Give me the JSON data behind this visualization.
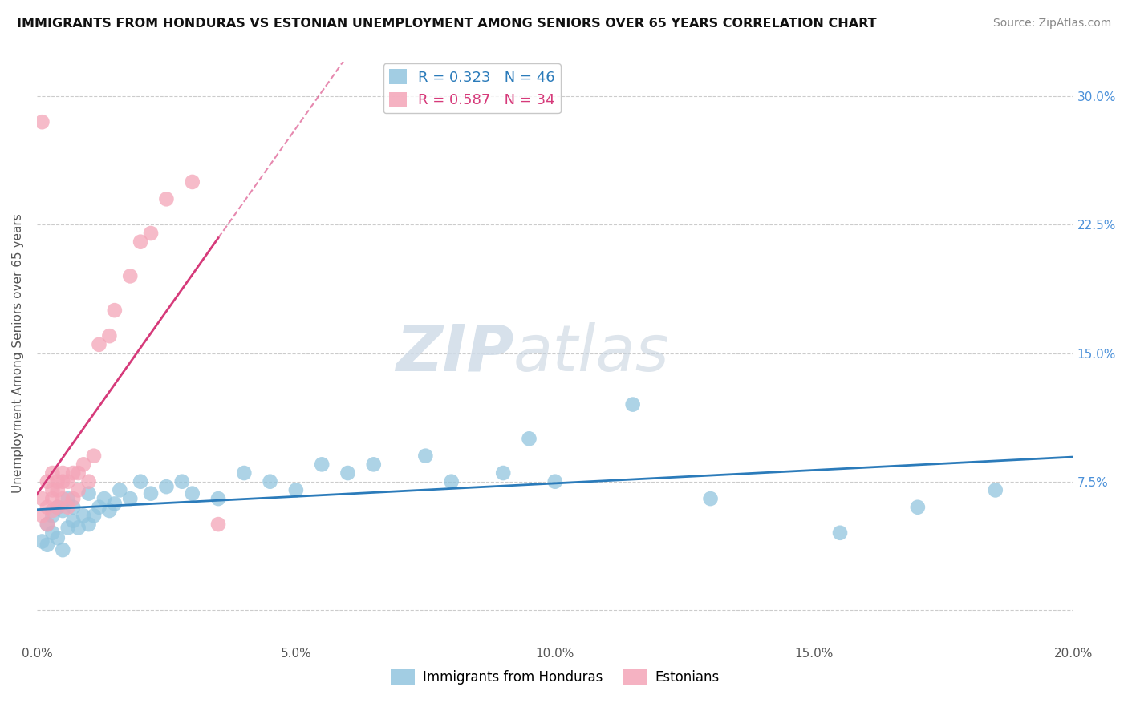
{
  "title": "IMMIGRANTS FROM HONDURAS VS ESTONIAN UNEMPLOYMENT AMONG SENIORS OVER 65 YEARS CORRELATION CHART",
  "source": "Source: ZipAtlas.com",
  "ylabel": "Unemployment Among Seniors over 65 years",
  "xlim": [
    0.0,
    0.2
  ],
  "ylim": [
    -0.02,
    0.32
  ],
  "x_ticks": [
    0.0,
    0.05,
    0.1,
    0.15,
    0.2
  ],
  "x_tick_labels": [
    "0.0%",
    "5.0%",
    "10.0%",
    "15.0%",
    "20.0%"
  ],
  "y_ticks": [
    0.0,
    0.075,
    0.15,
    0.225,
    0.3
  ],
  "y_tick_labels_right": [
    "",
    "7.5%",
    "15.0%",
    "22.5%",
    "30.0%"
  ],
  "legend_r1": "R = 0.323",
  "legend_n1": "N = 46",
  "legend_r2": "R = 0.587",
  "legend_n2": "N = 34",
  "blue_color": "#92c5de",
  "pink_color": "#f4a5b8",
  "blue_line_color": "#2b7bba",
  "pink_line_color": "#d63a7a",
  "watermark_zip": "ZIP",
  "watermark_atlas": "atlas",
  "blue_scatter_x": [
    0.001,
    0.002,
    0.002,
    0.003,
    0.003,
    0.004,
    0.004,
    0.005,
    0.005,
    0.006,
    0.006,
    0.007,
    0.007,
    0.008,
    0.009,
    0.01,
    0.01,
    0.011,
    0.012,
    0.013,
    0.014,
    0.015,
    0.016,
    0.018,
    0.02,
    0.022,
    0.025,
    0.028,
    0.03,
    0.035,
    0.04,
    0.045,
    0.05,
    0.055,
    0.06,
    0.065,
    0.075,
    0.08,
    0.09,
    0.095,
    0.1,
    0.115,
    0.13,
    0.155,
    0.17,
    0.185
  ],
  "blue_scatter_y": [
    0.04,
    0.038,
    0.05,
    0.045,
    0.055,
    0.042,
    0.06,
    0.035,
    0.058,
    0.048,
    0.065,
    0.052,
    0.06,
    0.048,
    0.055,
    0.05,
    0.068,
    0.055,
    0.06,
    0.065,
    0.058,
    0.062,
    0.07,
    0.065,
    0.075,
    0.068,
    0.072,
    0.075,
    0.068,
    0.065,
    0.08,
    0.075,
    0.07,
    0.085,
    0.08,
    0.085,
    0.09,
    0.075,
    0.08,
    0.1,
    0.075,
    0.12,
    0.065,
    0.045,
    0.06,
    0.07
  ],
  "pink_scatter_x": [
    0.001,
    0.001,
    0.002,
    0.002,
    0.002,
    0.003,
    0.003,
    0.003,
    0.003,
    0.004,
    0.004,
    0.004,
    0.005,
    0.005,
    0.005,
    0.006,
    0.006,
    0.007,
    0.007,
    0.008,
    0.008,
    0.009,
    0.01,
    0.011,
    0.012,
    0.014,
    0.015,
    0.018,
    0.02,
    0.022,
    0.025,
    0.03,
    0.001,
    0.035
  ],
  "pink_scatter_y": [
    0.055,
    0.065,
    0.05,
    0.06,
    0.075,
    0.058,
    0.065,
    0.07,
    0.08,
    0.06,
    0.07,
    0.075,
    0.065,
    0.075,
    0.08,
    0.06,
    0.075,
    0.065,
    0.08,
    0.07,
    0.08,
    0.085,
    0.075,
    0.09,
    0.155,
    0.16,
    0.175,
    0.195,
    0.215,
    0.22,
    0.24,
    0.25,
    0.285,
    0.05
  ]
}
